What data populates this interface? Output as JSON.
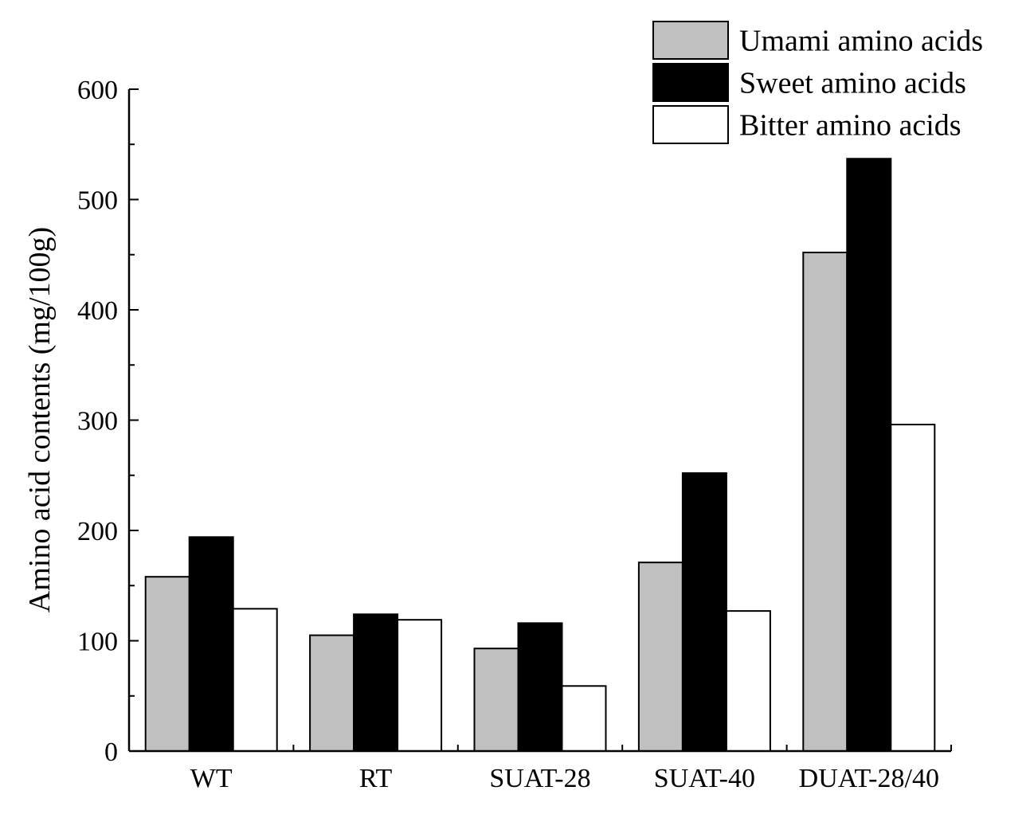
{
  "chart_data": {
    "type": "bar",
    "title": "",
    "xlabel": "",
    "ylabel": "Amino acid contents (mg/100g)",
    "ylim": [
      0,
      600
    ],
    "yticks": [
      0,
      100,
      200,
      300,
      400,
      500,
      600
    ],
    "categories": [
      "WT",
      "RT",
      "SUAT-28",
      "SUAT-40",
      "DUAT-28/40"
    ],
    "series": [
      {
        "name": "Umami amino acids",
        "color": "#c0c0c0",
        "values": [
          158,
          105,
          93,
          171,
          452
        ]
      },
      {
        "name": "Sweet amino acids",
        "color": "#000000",
        "values": [
          194,
          124,
          116,
          252,
          537
        ]
      },
      {
        "name": "Bitter amino acids",
        "color": "#ffffff",
        "values": [
          129,
          119,
          59,
          127,
          296
        ]
      }
    ],
    "legend_position": "top-right",
    "grid": false
  }
}
